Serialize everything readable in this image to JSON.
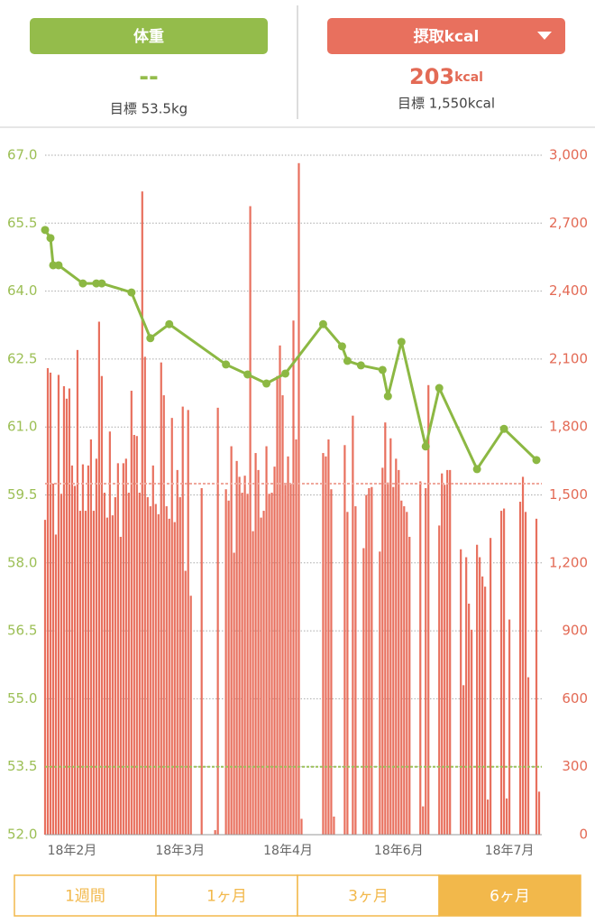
{
  "header": {
    "weight_button": "体重",
    "weight_value": "--",
    "weight_goal": "目標 53.5kg",
    "kcal_button": "摂取kcal",
    "kcal_value": 203,
    "kcal_unit": "kcal",
    "kcal_goal": "目標 1,550kcal"
  },
  "chart_data": {
    "type": "combo",
    "xlim": [
      0,
      184
    ],
    "xticks": [
      {
        "value": 10,
        "label": "18年2月"
      },
      {
        "value": 50,
        "label": "18年3月"
      },
      {
        "value": 90,
        "label": "18年4月"
      },
      {
        "value": 131,
        "label": "18年6月"
      },
      {
        "value": 172,
        "label": "18年7月"
      }
    ],
    "ylim": [
      52,
      67
    ],
    "yticks": [
      {
        "value": 52,
        "label": "52.0"
      },
      53.5,
      {
        "value": 55,
        "label": "55.0"
      },
      56.5,
      {
        "value": 58,
        "label": "58.0"
      },
      59.5,
      {
        "value": 61,
        "label": "61.0"
      },
      62.5,
      {
        "value": 64,
        "label": "64.0"
      },
      65.5,
      {
        "value": 67,
        "label": "67.0"
      }
    ],
    "y2lim": [
      0,
      3000
    ],
    "y2ticks": [
      0,
      300,
      600,
      900,
      {
        "value": 1200,
        "label": "1,200"
      },
      {
        "value": 1500,
        "label": "1,500"
      },
      {
        "value": 1800,
        "label": "1,800"
      },
      {
        "value": 2100,
        "label": "2,100"
      },
      {
        "value": 2400,
        "label": "2,400"
      },
      {
        "value": 2700,
        "label": "2,700"
      },
      {
        "value": 3000,
        "label": "3,000"
      }
    ],
    "grid": true,
    "series": [
      {
        "type": "bar",
        "axis": "y2",
        "color": "#e8705e",
        "x": [
          0,
          1,
          2,
          3,
          4,
          5,
          6,
          7,
          8,
          9,
          10,
          11,
          12,
          13,
          14,
          15,
          16,
          17,
          18,
          19,
          20,
          21,
          22,
          23,
          24,
          25,
          26,
          27,
          28,
          29,
          30,
          31,
          32,
          33,
          34,
          35,
          36,
          37,
          38,
          39,
          40,
          41,
          42,
          43,
          44,
          45,
          46,
          47,
          48,
          49,
          50,
          51,
          52,
          53,
          54,
          58,
          63,
          64,
          67,
          68,
          69,
          70,
          71,
          72,
          73,
          74,
          75,
          76,
          77,
          78,
          79,
          80,
          81,
          82,
          83,
          84,
          85,
          86,
          87,
          88,
          89,
          90,
          91,
          92,
          93,
          94,
          95,
          103,
          104,
          105,
          106,
          107,
          111,
          112,
          114,
          115,
          118,
          119,
          120,
          121,
          124,
          125,
          126,
          127,
          128,
          129,
          130,
          131,
          132,
          133,
          134,
          135,
          139,
          140,
          141,
          142,
          146,
          147,
          148,
          149,
          150,
          154,
          155,
          156,
          157,
          158,
          160,
          161,
          162,
          163,
          164,
          165,
          169,
          170,
          171,
          172,
          176,
          177,
          178,
          179,
          182,
          183
        ],
        "values": [
          1390,
          2060,
          2040,
          1550,
          1325,
          2030,
          1505,
          1980,
          1925,
          1970,
          1630,
          1540,
          2140,
          1430,
          1635,
          1430,
          1630,
          1745,
          1430,
          1660,
          2265,
          2025,
          1510,
          1400,
          1780,
          1410,
          1490,
          1640,
          1315,
          1640,
          1660,
          1510,
          1960,
          1765,
          1760,
          1510,
          2840,
          2110,
          1490,
          1450,
          1630,
          1460,
          1415,
          2085,
          1940,
          1450,
          1395,
          1840,
          1380,
          1610,
          1490,
          1890,
          1165,
          1875,
          1055,
          1530,
          20,
          1885,
          1525,
          1475,
          1715,
          1245,
          1650,
          1580,
          1510,
          1585,
          1505,
          2775,
          1340,
          1685,
          1610,
          1400,
          1430,
          1715,
          1505,
          1510,
          1625,
          2025,
          2160,
          1940,
          1545,
          1670,
          1550,
          2270,
          1745,
          2965,
          70,
          1685,
          1670,
          1745,
          1525,
          80,
          1720,
          1425,
          1850,
          1450,
          1265,
          1500,
          1530,
          1535,
          1250,
          1620,
          1820,
          1555,
          1750,
          1535,
          1660,
          1610,
          1475,
          1450,
          1425,
          1315,
          1560,
          125,
          1530,
          1985,
          1365,
          1595,
          1545,
          1610,
          1610,
          1260,
          660,
          1225,
          1020,
          905,
          1280,
          1225,
          1140,
          1095,
          155,
          1310,
          1430,
          1440,
          160,
          950,
          1470,
          1580,
          1425,
          695,
          1395,
          190
        ]
      },
      {
        "type": "line",
        "axis": "y",
        "color": "#8cb843",
        "x": [
          0,
          2,
          3,
          5,
          14,
          19,
          21,
          32,
          39,
          46,
          67,
          75,
          82,
          89,
          103,
          110,
          112,
          117,
          125,
          127,
          132,
          141,
          146,
          160,
          170,
          182
        ],
        "values": [
          65.35,
          65.17,
          64.57,
          64.57,
          64.17,
          64.17,
          64.17,
          63.97,
          62.96,
          63.27,
          62.38,
          62.16,
          61.96,
          62.18,
          63.27,
          62.78,
          62.46,
          62.36,
          62.26,
          61.68,
          62.88,
          60.57,
          61.86,
          60.07,
          60.96,
          60.27
        ]
      }
    ],
    "reference_lines": [
      {
        "axis": "y",
        "value": 53.5,
        "color": "#9cc25a"
      },
      {
        "axis": "y2",
        "value": 1550,
        "color": "#f0a89c"
      }
    ]
  },
  "tabs": {
    "options": [
      "1週間",
      "1ヶ月",
      "3ヶ月",
      "6ヶ月"
    ],
    "selected": 3
  }
}
